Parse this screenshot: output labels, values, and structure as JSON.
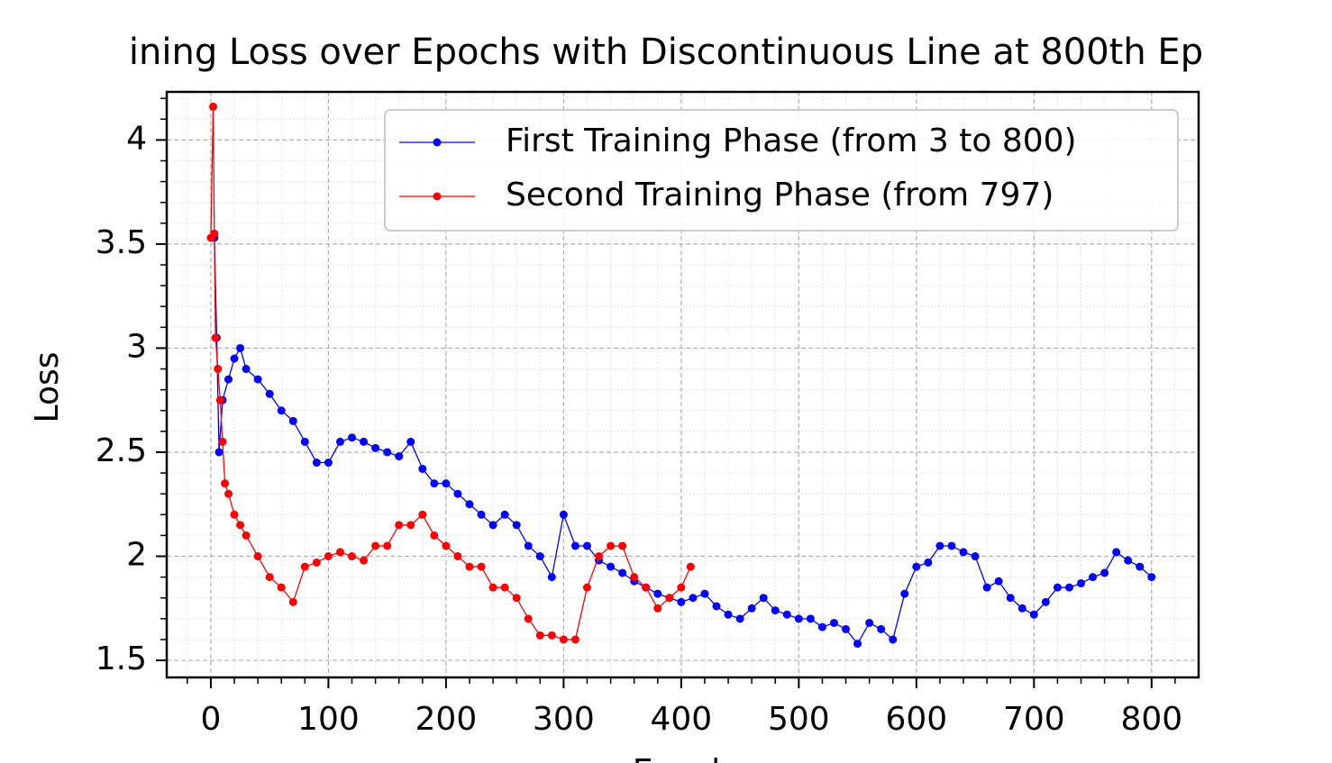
{
  "chart_data": {
    "type": "line",
    "title": "ining Loss over Epochs with Discontinuous Line at 800th Ep",
    "xlabel": "Epoch",
    "ylabel": "Loss",
    "series": [
      {
        "name": "First Training Phase (from 3 to 800)",
        "color": "#0000ff",
        "x": [
          3,
          5,
          7,
          10,
          15,
          20,
          25,
          30,
          40,
          50,
          60,
          70,
          80,
          90,
          100,
          110,
          120,
          130,
          140,
          150,
          160,
          170,
          180,
          190,
          200,
          210,
          220,
          230,
          240,
          250,
          260,
          270,
          280,
          290,
          300,
          310,
          320,
          330,
          340,
          350,
          360,
          370,
          380,
          390,
          400,
          410,
          420,
          430,
          440,
          450,
          460,
          470,
          480,
          490,
          500,
          510,
          520,
          530,
          540,
          550,
          560,
          570,
          580,
          590,
          600,
          610,
          620,
          630,
          640,
          650,
          660,
          670,
          680,
          690,
          700,
          710,
          720,
          730,
          740,
          750,
          760,
          770,
          780,
          790,
          800
        ],
        "values": [
          3.53,
          3.05,
          2.5,
          2.75,
          2.85,
          2.95,
          3.0,
          2.9,
          2.85,
          2.78,
          2.7,
          2.65,
          2.55,
          2.45,
          2.45,
          2.55,
          2.57,
          2.55,
          2.52,
          2.5,
          2.48,
          2.55,
          2.42,
          2.35,
          2.35,
          2.3,
          2.25,
          2.2,
          2.15,
          2.2,
          2.15,
          2.05,
          2.0,
          1.9,
          2.2,
          2.05,
          2.05,
          1.98,
          1.95,
          1.92,
          1.88,
          1.85,
          1.82,
          1.8,
          1.78,
          1.8,
          1.82,
          1.76,
          1.72,
          1.7,
          1.75,
          1.8,
          1.74,
          1.72,
          1.7,
          1.7,
          1.66,
          1.68,
          1.65,
          1.58,
          1.68,
          1.65,
          1.6,
          1.82,
          1.95,
          1.97,
          2.05,
          2.05,
          2.02,
          2.0,
          1.85,
          1.88,
          1.8,
          1.75,
          1.72,
          1.78,
          1.85,
          1.85,
          1.87,
          1.9,
          1.92,
          2.02,
          1.98,
          1.95,
          1.9
        ]
      },
      {
        "name": "Second Training Phase (from 797)",
        "color": "#ff0000",
        "x": [
          0,
          2,
          3,
          4,
          6,
          8,
          10,
          12,
          15,
          20,
          25,
          30,
          40,
          50,
          60,
          70,
          80,
          90,
          100,
          110,
          120,
          130,
          140,
          150,
          160,
          170,
          180,
          190,
          200,
          210,
          220,
          230,
          240,
          250,
          260,
          270,
          280,
          290,
          300,
          310,
          320,
          330,
          340,
          350,
          360,
          370,
          380,
          390,
          400,
          408
        ],
        "values": [
          3.53,
          4.16,
          3.55,
          3.05,
          2.9,
          2.75,
          2.55,
          2.35,
          2.3,
          2.2,
          2.15,
          2.1,
          2.0,
          1.9,
          1.85,
          1.78,
          1.95,
          1.97,
          2.0,
          2.02,
          2.0,
          1.98,
          2.05,
          2.05,
          2.15,
          2.15,
          2.2,
          2.1,
          2.05,
          2.0,
          1.95,
          1.95,
          1.85,
          1.85,
          1.8,
          1.7,
          1.62,
          1.62,
          1.6,
          1.6,
          1.85,
          2.0,
          2.05,
          2.05,
          1.9,
          1.85,
          1.75,
          1.8,
          1.85,
          1.95
        ]
      }
    ],
    "xlim": [
      -37.5,
      840
    ],
    "ylim": [
      1.418,
      4.231
    ],
    "xticks": [
      0,
      100,
      200,
      300,
      400,
      500,
      600,
      700,
      800
    ],
    "yticks": [
      1.5,
      2.0,
      2.5,
      3.0,
      3.5,
      4.0
    ],
    "xminorticks": [
      -20,
      20,
      40,
      60,
      80,
      120,
      140,
      160,
      180,
      220,
      240,
      260,
      280,
      320,
      340,
      360,
      380,
      420,
      440,
      460,
      480,
      520,
      540,
      560,
      580,
      620,
      640,
      660,
      680,
      720,
      740,
      760,
      780,
      820
    ],
    "yminorticks": [
      1.6,
      1.7,
      1.8,
      1.9,
      2.1,
      2.2,
      2.3,
      2.4,
      2.6,
      2.7,
      2.8,
      2.9,
      3.1,
      3.2,
      3.3,
      3.4,
      3.6,
      3.7,
      3.8,
      3.9,
      4.1,
      4.2
    ],
    "grid": true,
    "legend": "upper right"
  }
}
